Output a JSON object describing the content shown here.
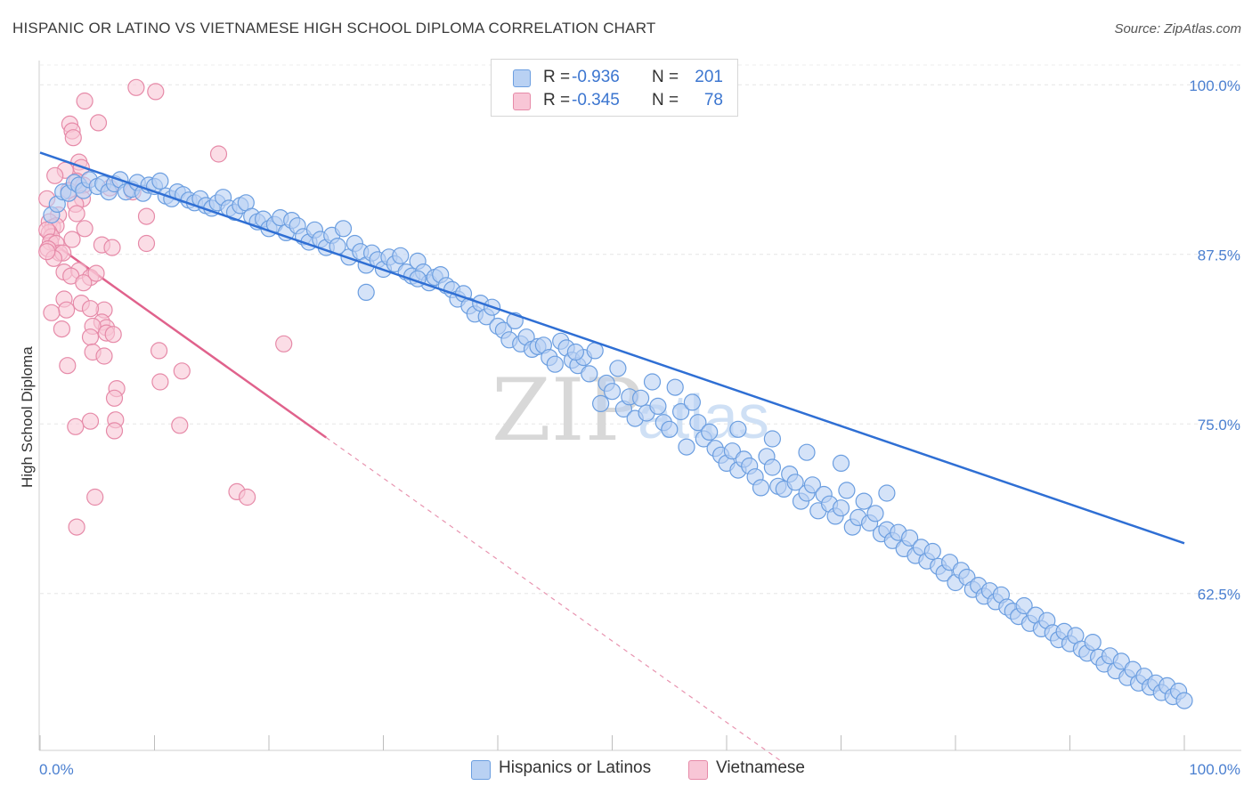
{
  "header": {
    "title": "HISPANIC OR LATINO VS VIETNAMESE HIGH SCHOOL DIPLOMA CORRELATION CHART",
    "source": "Source: ZipAtlas.com"
  },
  "watermark": {
    "zip": "ZIP",
    "atlas": "atlas"
  },
  "legend": {
    "rows": [
      {
        "r_label": "R =",
        "r_value": "-0.936",
        "n_label": "N =",
        "n_value": "201",
        "color": "#6b9ee0",
        "fill": "#b9d1f3"
      },
      {
        "r_label": "R =",
        "r_value": "-0.345",
        "n_label": "N =",
        "n_value": "78",
        "color": "#e68aa8",
        "fill": "#f8c6d6"
      }
    ]
  },
  "bottom_legend": {
    "items": [
      {
        "label": "Hispanics or Latinos",
        "fill": "#b9d1f3",
        "border": "#6b9ee0"
      },
      {
        "label": "Vietnamese",
        "fill": "#f8c6d6",
        "border": "#e68aa8"
      }
    ]
  },
  "chart_data": {
    "type": "scatter",
    "title": "HISPANIC OR LATINO VS VIETNAMESE HIGH SCHOOL DIPLOMA CORRELATION CHART",
    "xlabel": "",
    "ylabel": "High School Diploma",
    "xlim": [
      0,
      100
    ],
    "ylim": [
      51.0,
      101.0
    ],
    "x_tick_labels": [
      "0.0%",
      "100.0%"
    ],
    "y_ticks": [
      62.5,
      75.0,
      87.5,
      100.0
    ],
    "y_tick_labels": [
      "62.5%",
      "75.0%",
      "87.5%",
      "100.0%"
    ],
    "grid": true,
    "series": [
      {
        "name": "Hispanics or Latinos",
        "color": "#6b9ee0",
        "fill": "#b9d1f3",
        "trend": {
          "x": [
            0,
            100
          ],
          "y": [
            95.0,
            66.2
          ]
        },
        "points": [
          [
            1.0,
            90.4
          ],
          [
            1.5,
            91.2
          ],
          [
            2.0,
            92.1
          ],
          [
            2.5,
            92.0
          ],
          [
            3.0,
            92.8
          ],
          [
            3.4,
            92.6
          ],
          [
            3.8,
            92.2
          ],
          [
            4.3,
            93.0
          ],
          [
            5.0,
            92.5
          ],
          [
            5.5,
            92.7
          ],
          [
            6.0,
            92.1
          ],
          [
            6.5,
            92.7
          ],
          [
            7.0,
            93.0
          ],
          [
            7.5,
            92.1
          ],
          [
            8.0,
            92.3
          ],
          [
            8.5,
            92.8
          ],
          [
            9.0,
            92.0
          ],
          [
            9.5,
            92.6
          ],
          [
            10.0,
            92.5
          ],
          [
            10.5,
            92.9
          ],
          [
            11.0,
            91.8
          ],
          [
            11.5,
            91.6
          ],
          [
            12.0,
            92.1
          ],
          [
            12.5,
            91.9
          ],
          [
            13.0,
            91.5
          ],
          [
            13.5,
            91.3
          ],
          [
            14.0,
            91.6
          ],
          [
            14.5,
            91.1
          ],
          [
            15.0,
            90.9
          ],
          [
            15.5,
            91.3
          ],
          [
            16.0,
            91.7
          ],
          [
            16.5,
            90.9
          ],
          [
            17.0,
            90.6
          ],
          [
            17.5,
            91.1
          ],
          [
            18.0,
            91.3
          ],
          [
            18.5,
            90.3
          ],
          [
            19.0,
            89.9
          ],
          [
            19.5,
            90.1
          ],
          [
            20.0,
            89.4
          ],
          [
            20.5,
            89.7
          ],
          [
            21.0,
            90.2
          ],
          [
            21.5,
            89.1
          ],
          [
            22.0,
            90.0
          ],
          [
            22.5,
            89.6
          ],
          [
            23.0,
            88.8
          ],
          [
            23.5,
            88.4
          ],
          [
            24.0,
            89.3
          ],
          [
            24.5,
            88.6
          ],
          [
            25.0,
            88.0
          ],
          [
            25.5,
            88.9
          ],
          [
            26.0,
            88.1
          ],
          [
            26.5,
            89.4
          ],
          [
            27.0,
            87.3
          ],
          [
            27.5,
            88.3
          ],
          [
            28.0,
            87.7
          ],
          [
            28.5,
            86.7
          ],
          [
            29.0,
            87.6
          ],
          [
            29.5,
            87.1
          ],
          [
            30.0,
            86.4
          ],
          [
            30.5,
            87.3
          ],
          [
            31.0,
            86.8
          ],
          [
            31.5,
            87.4
          ],
          [
            32.0,
            86.2
          ],
          [
            32.5,
            85.9
          ],
          [
            33.0,
            87.0
          ],
          [
            33.5,
            86.2
          ],
          [
            34.0,
            85.4
          ],
          [
            34.5,
            85.8
          ],
          [
            35.0,
            86.0
          ],
          [
            35.5,
            85.2
          ],
          [
            36.0,
            84.9
          ],
          [
            36.5,
            84.2
          ],
          [
            37.0,
            84.6
          ],
          [
            37.5,
            83.7
          ],
          [
            38.0,
            83.1
          ],
          [
            38.5,
            83.9
          ],
          [
            39.0,
            82.9
          ],
          [
            39.5,
            83.6
          ],
          [
            40.0,
            82.2
          ],
          [
            40.5,
            81.9
          ],
          [
            41.0,
            81.2
          ],
          [
            41.5,
            82.6
          ],
          [
            42.0,
            80.9
          ],
          [
            42.5,
            81.4
          ],
          [
            43.0,
            80.5
          ],
          [
            43.5,
            80.7
          ],
          [
            44.0,
            80.8
          ],
          [
            44.5,
            79.9
          ],
          [
            45.0,
            79.4
          ],
          [
            45.5,
            81.1
          ],
          [
            46.0,
            80.6
          ],
          [
            46.5,
            79.7
          ],
          [
            47.0,
            79.3
          ],
          [
            47.5,
            79.9
          ],
          [
            48.0,
            78.7
          ],
          [
            48.5,
            80.4
          ],
          [
            49.0,
            76.5
          ],
          [
            49.5,
            78.0
          ],
          [
            50.0,
            77.4
          ],
          [
            50.5,
            79.1
          ],
          [
            51.0,
            76.1
          ],
          [
            51.5,
            77.0
          ],
          [
            52.0,
            75.4
          ],
          [
            52.5,
            76.9
          ],
          [
            53.0,
            75.8
          ],
          [
            53.5,
            78.1
          ],
          [
            54.0,
            76.3
          ],
          [
            54.5,
            75.1
          ],
          [
            55.0,
            74.6
          ],
          [
            55.5,
            77.7
          ],
          [
            56.0,
            75.9
          ],
          [
            56.5,
            73.3
          ],
          [
            57.0,
            76.6
          ],
          [
            57.5,
            75.1
          ],
          [
            58.0,
            73.9
          ],
          [
            58.5,
            74.4
          ],
          [
            59.0,
            73.2
          ],
          [
            59.5,
            72.7
          ],
          [
            60.0,
            72.1
          ],
          [
            60.5,
            73.0
          ],
          [
            61.0,
            71.6
          ],
          [
            61.5,
            72.4
          ],
          [
            62.0,
            71.9
          ],
          [
            62.5,
            71.1
          ],
          [
            63.0,
            70.3
          ],
          [
            63.5,
            72.6
          ],
          [
            64.0,
            71.8
          ],
          [
            64.5,
            70.4
          ],
          [
            65.0,
            70.2
          ],
          [
            65.5,
            71.3
          ],
          [
            66.0,
            70.7
          ],
          [
            66.5,
            69.3
          ],
          [
            67.0,
            69.9
          ],
          [
            67.5,
            70.5
          ],
          [
            68.0,
            68.6
          ],
          [
            68.5,
            69.8
          ],
          [
            69.0,
            69.1
          ],
          [
            69.5,
            68.2
          ],
          [
            70.0,
            68.8
          ],
          [
            70.5,
            70.1
          ],
          [
            71.0,
            67.4
          ],
          [
            71.5,
            68.1
          ],
          [
            72.0,
            69.3
          ],
          [
            72.5,
            67.7
          ],
          [
            73.0,
            68.4
          ],
          [
            73.5,
            66.9
          ],
          [
            74.0,
            67.2
          ],
          [
            74.5,
            66.4
          ],
          [
            75.0,
            67.0
          ],
          [
            75.5,
            65.8
          ],
          [
            76.0,
            66.6
          ],
          [
            76.5,
            65.3
          ],
          [
            77.0,
            65.9
          ],
          [
            77.5,
            64.9
          ],
          [
            78.0,
            65.6
          ],
          [
            78.5,
            64.5
          ],
          [
            79.0,
            64.0
          ],
          [
            79.5,
            64.8
          ],
          [
            80.0,
            63.3
          ],
          [
            80.5,
            64.2
          ],
          [
            81.0,
            63.7
          ],
          [
            81.5,
            62.8
          ],
          [
            82.0,
            63.1
          ],
          [
            82.5,
            62.3
          ],
          [
            83.0,
            62.7
          ],
          [
            83.5,
            61.9
          ],
          [
            84.0,
            62.4
          ],
          [
            84.5,
            61.5
          ],
          [
            85.0,
            61.2
          ],
          [
            85.5,
            60.8
          ],
          [
            86.0,
            61.6
          ],
          [
            86.5,
            60.3
          ],
          [
            87.0,
            60.9
          ],
          [
            87.5,
            59.9
          ],
          [
            88.0,
            60.5
          ],
          [
            88.5,
            59.6
          ],
          [
            89.0,
            59.1
          ],
          [
            89.5,
            59.7
          ],
          [
            90.0,
            58.8
          ],
          [
            90.5,
            59.4
          ],
          [
            91.0,
            58.4
          ],
          [
            91.5,
            58.1
          ],
          [
            92.0,
            58.9
          ],
          [
            92.5,
            57.8
          ],
          [
            93.0,
            57.3
          ],
          [
            93.5,
            57.9
          ],
          [
            94.0,
            56.8
          ],
          [
            94.5,
            57.5
          ],
          [
            95.0,
            56.3
          ],
          [
            95.5,
            56.9
          ],
          [
            96.0,
            55.9
          ],
          [
            96.5,
            56.4
          ],
          [
            97.0,
            55.6
          ],
          [
            97.5,
            55.9
          ],
          [
            98.0,
            55.2
          ],
          [
            98.5,
            55.7
          ],
          [
            99.0,
            54.9
          ],
          [
            99.5,
            55.3
          ],
          [
            100.0,
            54.6
          ],
          [
            28.5,
            84.7
          ],
          [
            33.0,
            85.7
          ],
          [
            46.8,
            80.3
          ],
          [
            61.0,
            74.6
          ],
          [
            64.0,
            73.9
          ],
          [
            67.0,
            72.9
          ],
          [
            70.0,
            72.1
          ],
          [
            74.0,
            69.9
          ]
        ]
      },
      {
        "name": "Vietnamese",
        "color": "#e68aa8",
        "fill": "#f8c6d6",
        "trend": {
          "x": [
            0,
            25
          ],
          "y": [
            89.0,
            74.0
          ]
        },
        "trend_ext": {
          "x": [
            25,
            65
          ],
          "y": [
            74.0,
            50.0
          ]
        },
        "points": [
          [
            8.4,
            99.8
          ],
          [
            10.1,
            99.5
          ],
          [
            3.9,
            98.8
          ],
          [
            2.6,
            97.1
          ],
          [
            5.1,
            97.2
          ],
          [
            2.8,
            96.6
          ],
          [
            2.9,
            96.1
          ],
          [
            15.6,
            94.9
          ],
          [
            3.4,
            94.3
          ],
          [
            3.6,
            93.9
          ],
          [
            2.2,
            93.7
          ],
          [
            1.3,
            93.3
          ],
          [
            3.2,
            92.9
          ],
          [
            3.8,
            92.6
          ],
          [
            8.1,
            92.1
          ],
          [
            6.1,
            92.4
          ],
          [
            2.5,
            92.2
          ],
          [
            3.7,
            91.6
          ],
          [
            3.1,
            91.2
          ],
          [
            0.6,
            91.6
          ],
          [
            9.3,
            90.3
          ],
          [
            1.6,
            90.4
          ],
          [
            3.2,
            90.5
          ],
          [
            0.8,
            89.9
          ],
          [
            1.1,
            89.5
          ],
          [
            1.4,
            89.6
          ],
          [
            0.8,
            89.1
          ],
          [
            1.0,
            88.8
          ],
          [
            0.6,
            89.3
          ],
          [
            3.9,
            89.4
          ],
          [
            2.8,
            88.6
          ],
          [
            0.9,
            88.4
          ],
          [
            1.4,
            88.3
          ],
          [
            1.7,
            87.6
          ],
          [
            0.7,
            87.9
          ],
          [
            2.0,
            87.6
          ],
          [
            1.2,
            87.2
          ],
          [
            0.6,
            87.7
          ],
          [
            5.4,
            88.2
          ],
          [
            6.3,
            88.0
          ],
          [
            2.1,
            86.2
          ],
          [
            3.4,
            86.3
          ],
          [
            2.7,
            85.9
          ],
          [
            4.4,
            85.8
          ],
          [
            4.9,
            86.1
          ],
          [
            3.8,
            85.4
          ],
          [
            2.1,
            84.2
          ],
          [
            3.6,
            83.9
          ],
          [
            5.6,
            83.4
          ],
          [
            4.4,
            83.5
          ],
          [
            2.3,
            83.4
          ],
          [
            1.0,
            83.2
          ],
          [
            5.4,
            82.5
          ],
          [
            5.8,
            82.1
          ],
          [
            4.6,
            82.2
          ],
          [
            1.9,
            82.0
          ],
          [
            5.8,
            81.7
          ],
          [
            4.4,
            81.4
          ],
          [
            6.4,
            81.6
          ],
          [
            21.3,
            80.9
          ],
          [
            4.6,
            80.3
          ],
          [
            5.6,
            80.0
          ],
          [
            10.4,
            80.4
          ],
          [
            2.4,
            79.3
          ],
          [
            12.4,
            78.9
          ],
          [
            10.5,
            78.1
          ],
          [
            6.7,
            77.6
          ],
          [
            6.5,
            76.9
          ],
          [
            4.4,
            75.2
          ],
          [
            6.6,
            75.3
          ],
          [
            3.1,
            74.8
          ],
          [
            6.5,
            74.5
          ],
          [
            12.2,
            74.9
          ],
          [
            17.2,
            70.0
          ],
          [
            18.1,
            69.6
          ],
          [
            4.8,
            69.6
          ],
          [
            3.2,
            67.4
          ],
          [
            9.3,
            88.3
          ]
        ]
      }
    ]
  }
}
